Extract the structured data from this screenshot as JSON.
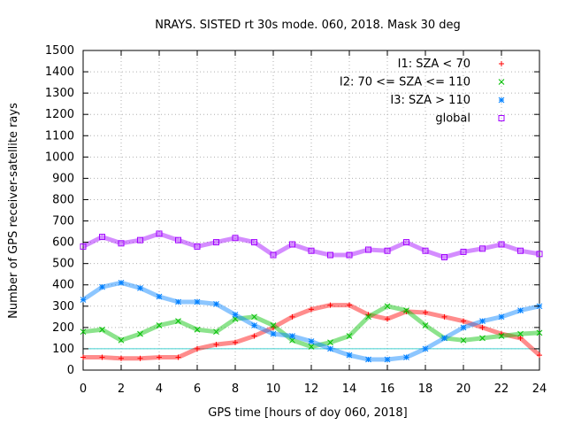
{
  "chart_data": {
    "type": "scatter",
    "title": "NRAYS. SISTED rt 30s mode. 060, 2018. Mask 30 deg",
    "xlabel": "GPS time [hours of doy 060, 2018]",
    "ylabel": "Number of GPS receiver-satellite rays",
    "xlim": [
      0,
      24
    ],
    "ylim": [
      0,
      1500
    ],
    "xticks": [
      "0",
      "2",
      "4",
      "6",
      "8",
      "10",
      "12",
      "14",
      "16",
      "18",
      "20",
      "22",
      "24"
    ],
    "yticks": [
      "0",
      "100",
      "200",
      "300",
      "400",
      "500",
      "600",
      "700",
      "800",
      "900",
      "1000",
      "1100",
      "1200",
      "1300",
      "1400",
      "1500"
    ],
    "grid": true,
    "legend_position": "top-right",
    "reference_line": {
      "y": 100,
      "color": "#40d0d0"
    },
    "series": [
      {
        "name": "I1: SZA < 70",
        "marker": "+",
        "color": "#ff0000",
        "x": [
          0,
          1,
          2,
          3,
          4,
          5,
          6,
          7,
          8,
          9,
          10,
          11,
          12,
          13,
          14,
          15,
          16,
          17,
          18,
          19,
          20,
          21,
          22,
          23,
          24
        ],
        "y": [
          60,
          60,
          55,
          55,
          60,
          60,
          100,
          120,
          130,
          160,
          200,
          250,
          285,
          305,
          305,
          260,
          240,
          275,
          270,
          250,
          230,
          200,
          170,
          150,
          70
        ]
      },
      {
        "name": "I2: 70 <= SZA <= 110",
        "marker": "x",
        "color": "#00c000",
        "x": [
          0,
          1,
          2,
          3,
          4,
          5,
          6,
          7,
          8,
          9,
          10,
          11,
          12,
          13,
          14,
          15,
          16,
          17,
          18,
          19,
          20,
          21,
          22,
          23,
          24
        ],
        "y": [
          180,
          190,
          140,
          170,
          210,
          230,
          190,
          180,
          240,
          250,
          210,
          140,
          110,
          130,
          160,
          250,
          300,
          280,
          210,
          150,
          140,
          150,
          160,
          170,
          175
        ]
      },
      {
        "name": "I3: SZA > 110",
        "marker": "*",
        "color": "#0080ff",
        "x": [
          0,
          1,
          2,
          3,
          4,
          5,
          6,
          7,
          8,
          9,
          10,
          11,
          12,
          13,
          14,
          15,
          16,
          17,
          18,
          19,
          20,
          21,
          22,
          23,
          24
        ],
        "y": [
          330,
          390,
          410,
          385,
          345,
          320,
          320,
          310,
          260,
          210,
          170,
          160,
          135,
          100,
          70,
          50,
          50,
          60,
          100,
          150,
          200,
          230,
          250,
          280,
          300
        ]
      },
      {
        "name": "global",
        "marker": "square",
        "color": "#a000ff",
        "x": [
          0,
          1,
          2,
          3,
          4,
          5,
          6,
          7,
          8,
          9,
          10,
          11,
          12,
          13,
          14,
          15,
          16,
          17,
          18,
          19,
          20,
          21,
          22,
          23,
          24
        ],
        "y": [
          580,
          625,
          595,
          610,
          640,
          610,
          580,
          600,
          620,
          600,
          540,
          590,
          560,
          540,
          540,
          565,
          560,
          600,
          560,
          530,
          555,
          570,
          590,
          560,
          545
        ]
      }
    ]
  }
}
